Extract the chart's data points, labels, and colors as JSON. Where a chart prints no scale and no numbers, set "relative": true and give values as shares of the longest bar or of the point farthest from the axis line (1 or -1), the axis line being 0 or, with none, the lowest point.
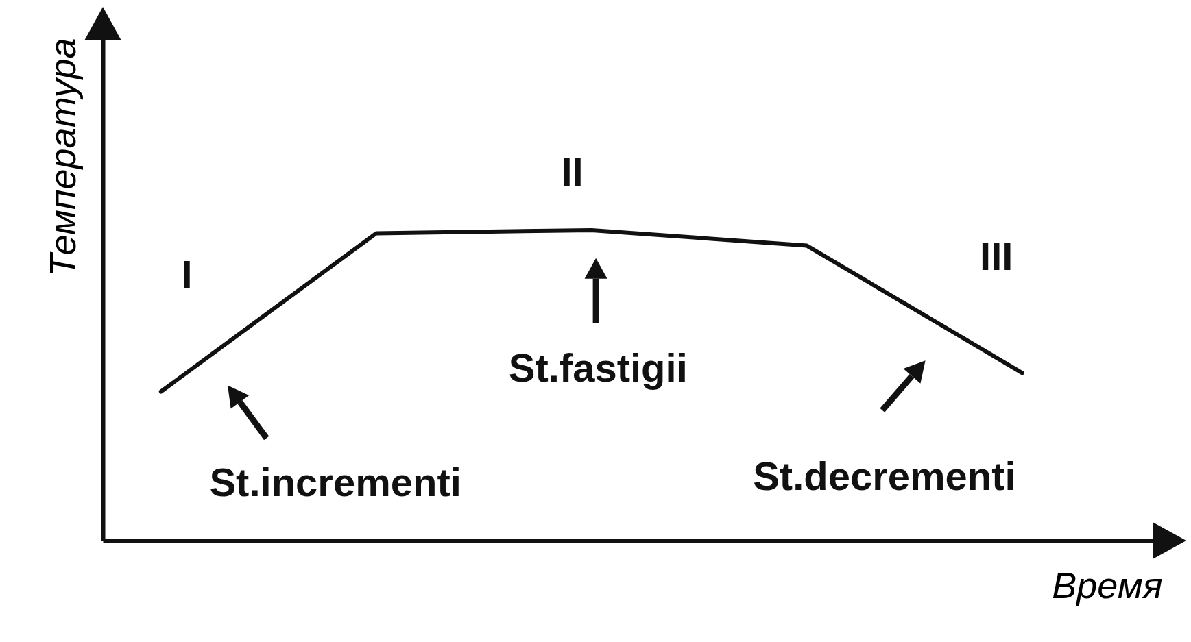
{
  "chart_data": {
    "type": "line",
    "relative": true,
    "xlabel": "Время",
    "ylabel": "Температура",
    "tick_labels": false,
    "color": "#111111",
    "categories": [
      null,
      null,
      null,
      null,
      null
    ],
    "values": [
      0.48,
      0.99,
      1,
      0.95,
      0.54
    ],
    "annotations": [
      "I",
      "II",
      "III",
      "St.incrementi",
      "St.fastigii",
      "St.decrementi"
    ]
  }
}
